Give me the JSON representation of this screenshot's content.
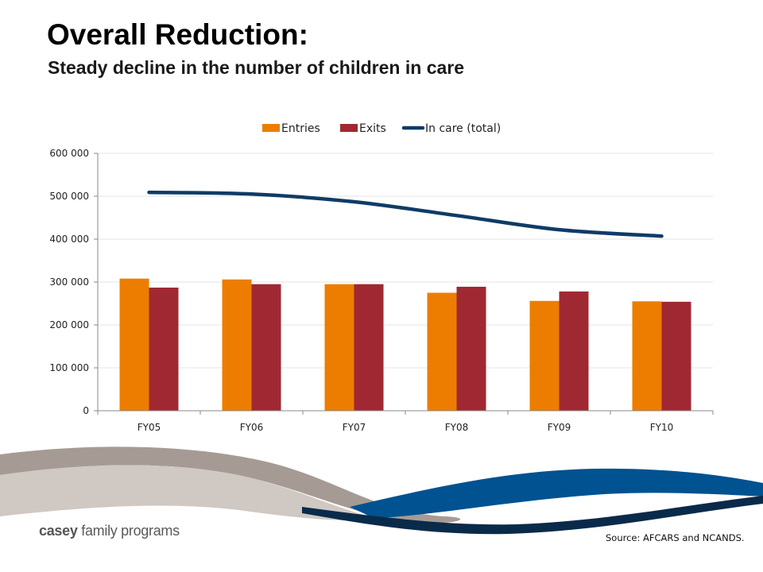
{
  "slide": {
    "title": "Overall Reduction:",
    "subtitle": "Steady decline in the number of children in care",
    "source": "Source: AFCARS and NCANDS.",
    "logo_bold": "casey",
    "logo_rest": " family programs"
  },
  "colors": {
    "entries": "#ED7D00",
    "exits": "#A02832",
    "in_care": "#0F3B66",
    "swoosh_gray": "#A69B94",
    "swoosh_blue": "#005291",
    "swoosh_dark": "#0A2A4A"
  },
  "chart_data": {
    "type": "bar",
    "categories": [
      "FY05",
      "FY06",
      "FY07",
      "FY08",
      "FY09",
      "FY10"
    ],
    "series": [
      {
        "name": "Entries",
        "type": "bar",
        "values": [
          308000,
          306000,
          295000,
          275000,
          256000,
          255000
        ]
      },
      {
        "name": "Exits",
        "type": "bar",
        "values": [
          287000,
          295000,
          295000,
          289000,
          278000,
          254000
        ]
      },
      {
        "name": "In care (total)",
        "type": "line",
        "values": [
          509000,
          505000,
          487000,
          455000,
          422000,
          407000
        ]
      }
    ],
    "ylim": [
      0,
      600000
    ],
    "yticks": [
      0,
      100000,
      200000,
      300000,
      400000,
      500000,
      600000
    ],
    "ytick_labels": [
      "0",
      "100 000",
      "200 000",
      "300 000",
      "400 000",
      "500 000",
      "600 000"
    ],
    "grid": true,
    "legend": "top-center"
  }
}
